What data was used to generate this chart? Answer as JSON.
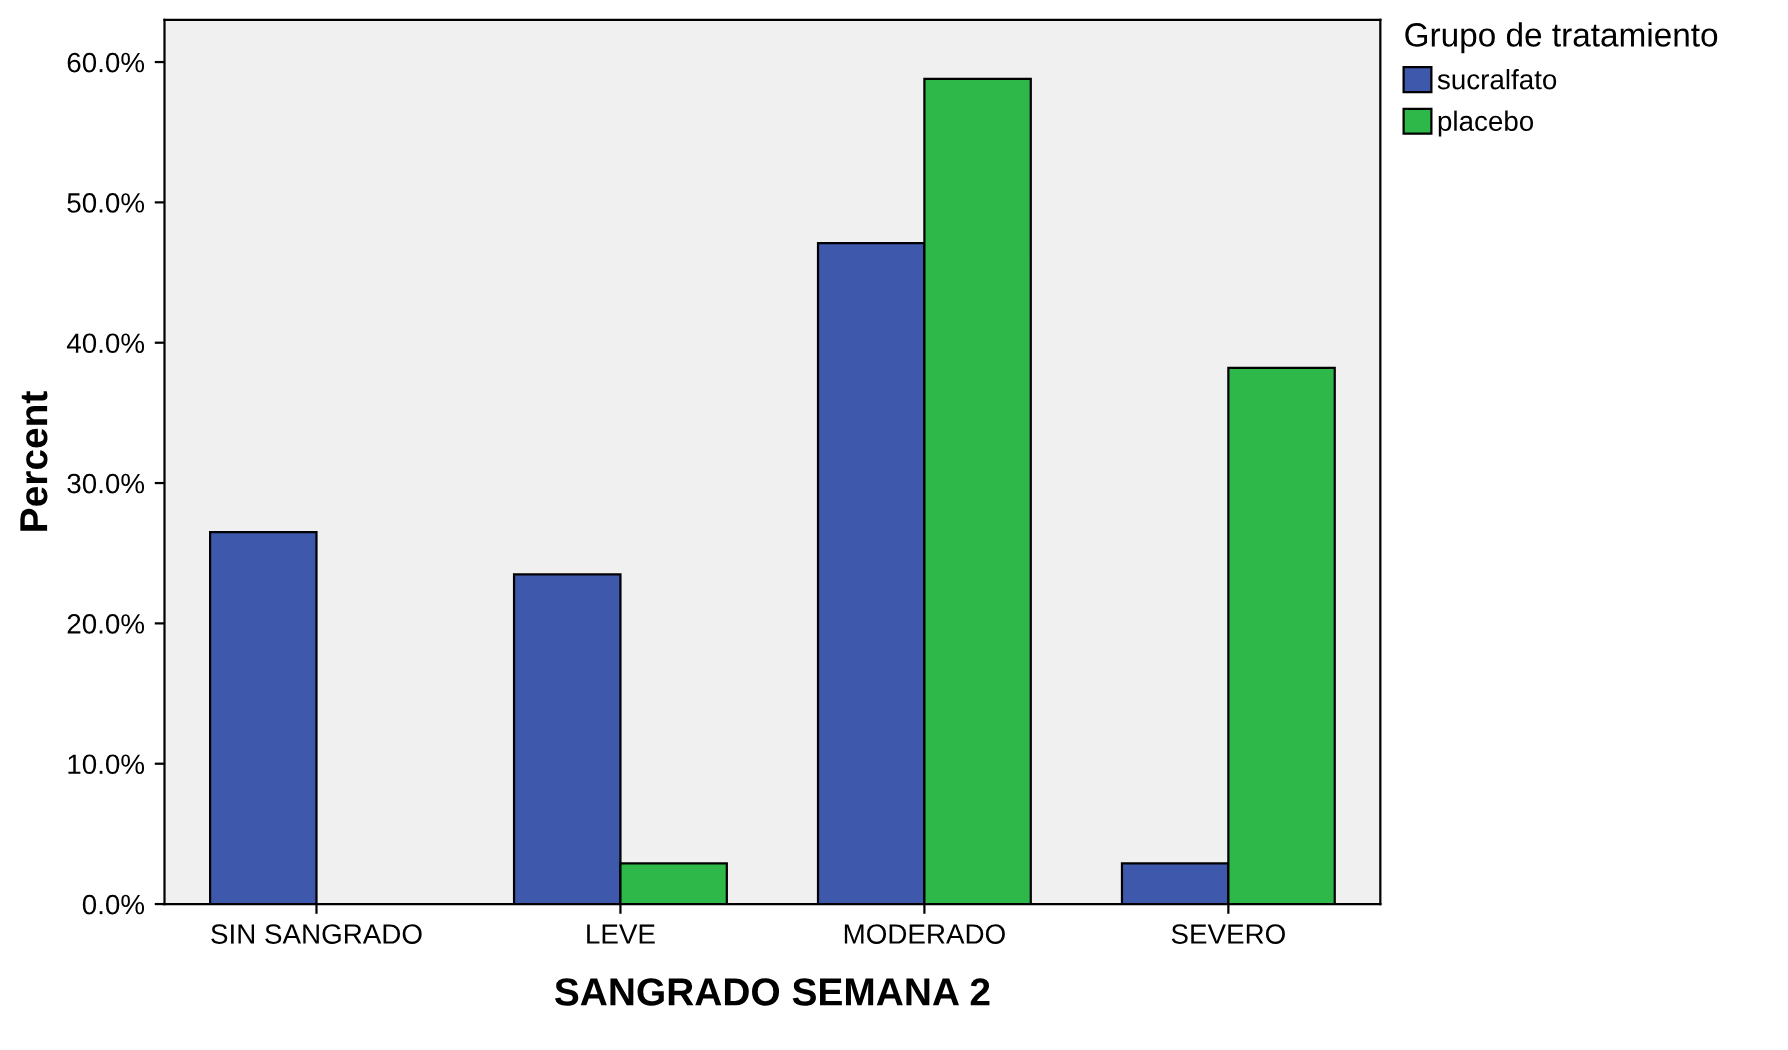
{
  "chart_data": {
    "type": "bar",
    "xlabel": "SANGRADO SEMANA 2",
    "ylabel": "Percent",
    "legend_title": "Grupo de tratamiento",
    "categories": [
      "SIN SANGRADO",
      "LEVE",
      "MODERADO",
      "SEVERO"
    ],
    "series": [
      {
        "name": "sucralfato",
        "color": "#3e58ac",
        "values": [
          26.5,
          23.5,
          47.1,
          2.9
        ]
      },
      {
        "name": "placebo",
        "color": "#2fb84a",
        "values": [
          0,
          2.9,
          58.8,
          38.2
        ]
      }
    ],
    "ylim": [
      0,
      63
    ],
    "yticks": [
      {
        "value": 0,
        "label": "0.0%"
      },
      {
        "value": 10,
        "label": "10.0%"
      },
      {
        "value": 20,
        "label": "20.0%"
      },
      {
        "value": 30,
        "label": "30.0%"
      },
      {
        "value": 40,
        "label": "40.0%"
      },
      {
        "value": 50,
        "label": "50.0%"
      },
      {
        "value": 60,
        "label": "60.0%"
      }
    ],
    "grid": false,
    "legend": "top right"
  }
}
